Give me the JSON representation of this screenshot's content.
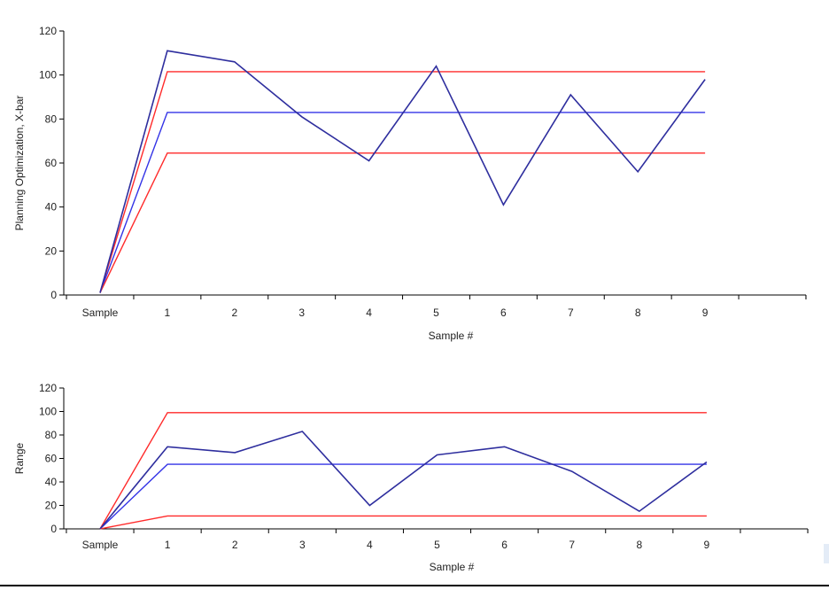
{
  "chart_data": [
    {
      "type": "line",
      "xlabel": "Sample #",
      "ylabel": "Planning Optimization, X-bar",
      "categories": [
        "Sample",
        "1",
        "2",
        "3",
        "4",
        "5",
        "6",
        "7",
        "8",
        "9"
      ],
      "ylim": [
        0,
        120
      ],
      "yticks": [
        "0",
        "20",
        "40",
        "60",
        "80",
        "100",
        "120"
      ],
      "grid": false,
      "series": [
        {
          "role": "data",
          "color": "#2e2e9e",
          "values": [
            1,
            111,
            106,
            81,
            61,
            104,
            41,
            91,
            56,
            98
          ]
        },
        {
          "role": "upper-control-limit",
          "color": "#ff2a2a",
          "values": [
            1,
            101.5,
            101.5,
            101.5,
            101.5,
            101.5,
            101.5,
            101.5,
            101.5,
            101.5
          ]
        },
        {
          "role": "center-line",
          "color": "#3333e6",
          "values": [
            1,
            83,
            83,
            83,
            83,
            83,
            83,
            83,
            83,
            83
          ]
        },
        {
          "role": "lower-control-limit",
          "color": "#ff2a2a",
          "values": [
            1,
            64.5,
            64.5,
            64.5,
            64.5,
            64.5,
            64.5,
            64.5,
            64.5,
            64.5
          ]
        }
      ]
    },
    {
      "type": "line",
      "xlabel": "Sample #",
      "ylabel": "Range",
      "categories": [
        "Sample",
        "1",
        "2",
        "3",
        "4",
        "5",
        "6",
        "7",
        "8",
        "9"
      ],
      "ylim": [
        0,
        120
      ],
      "yticks": [
        "0",
        "20",
        "40",
        "60",
        "80",
        "100",
        "120"
      ],
      "grid": false,
      "series": [
        {
          "role": "data",
          "color": "#2e2e9e",
          "values": [
            0,
            70,
            65,
            83,
            20,
            63,
            70,
            49,
            15,
            57
          ]
        },
        {
          "role": "upper-control-limit",
          "color": "#ff2a2a",
          "values": [
            0,
            99,
            99,
            99,
            99,
            99,
            99,
            99,
            99,
            99
          ]
        },
        {
          "role": "center-line",
          "color": "#3333e6",
          "values": [
            0,
            55,
            55,
            55,
            55,
            55,
            55,
            55,
            55,
            55
          ]
        },
        {
          "role": "lower-control-limit",
          "color": "#ff2a2a",
          "values": [
            0,
            11,
            11,
            11,
            11,
            11,
            11,
            11,
            11,
            11
          ]
        }
      ]
    }
  ]
}
